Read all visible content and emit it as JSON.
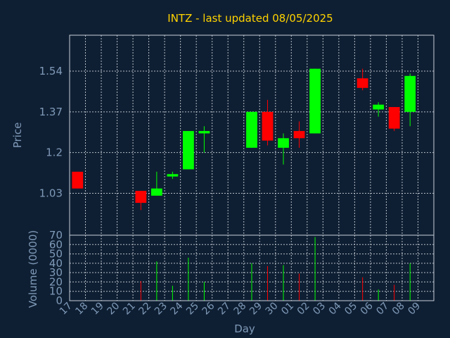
{
  "chart_data": [
    {
      "type": "candlestick",
      "title": "INTZ - last updated 08/05/2025",
      "ylabel": "Price",
      "xlabel": "Day",
      "ylim": [
        0.855,
        1.69
      ],
      "yticks": [
        1.03,
        1.2,
        1.37,
        1.54
      ],
      "ytick_labels": [
        "1.03",
        "1.2",
        "1.37",
        "1.54"
      ],
      "x": [
        "17",
        "18",
        "19",
        "20",
        "21",
        "22",
        "23",
        "24",
        "25",
        "26",
        "27",
        "28",
        "29",
        "30",
        "01",
        "02",
        "03",
        "04",
        "05",
        "06",
        "07",
        "08",
        "09"
      ],
      "colors": {
        "up": "#00ff00",
        "down": "#ff0000"
      },
      "candles": [
        {
          "x": "17",
          "open": 1.12,
          "high": 1.12,
          "low": 1.05,
          "close": 1.05
        },
        {
          "x": "21",
          "open": 1.04,
          "high": 1.04,
          "low": 0.96,
          "close": 0.99
        },
        {
          "x": "22",
          "open": 1.02,
          "high": 1.12,
          "low": 1.02,
          "close": 1.05
        },
        {
          "x": "23",
          "open": 1.1,
          "high": 1.12,
          "low": 1.09,
          "close": 1.11
        },
        {
          "x": "24",
          "open": 1.13,
          "high": 1.29,
          "low": 1.13,
          "close": 1.29
        },
        {
          "x": "25",
          "open": 1.28,
          "high": 1.31,
          "low": 1.2,
          "close": 1.29
        },
        {
          "x": "28",
          "open": 1.22,
          "high": 1.37,
          "low": 1.22,
          "close": 1.37
        },
        {
          "x": "29",
          "open": 1.37,
          "high": 1.42,
          "low": 1.23,
          "close": 1.25
        },
        {
          "x": "30",
          "open": 1.22,
          "high": 1.28,
          "low": 1.15,
          "close": 1.26
        },
        {
          "x": "01",
          "open": 1.29,
          "high": 1.33,
          "low": 1.22,
          "close": 1.26
        },
        {
          "x": "02",
          "open": 1.28,
          "high": 1.55,
          "low": 1.28,
          "close": 1.55
        },
        {
          "x": "05",
          "open": 1.51,
          "high": 1.55,
          "low": 1.46,
          "close": 1.47
        },
        {
          "x": "06",
          "open": 1.38,
          "high": 1.41,
          "low": 1.35,
          "close": 1.4
        },
        {
          "x": "07",
          "open": 1.39,
          "high": 1.39,
          "low": 1.29,
          "close": 1.3
        },
        {
          "x": "08",
          "open": 1.37,
          "high": 1.53,
          "low": 1.31,
          "close": 1.52
        }
      ]
    },
    {
      "type": "bar",
      "ylabel": "Volume (0000)",
      "ylim": [
        0,
        70
      ],
      "yticks": [
        0,
        10,
        20,
        30,
        40,
        50,
        60,
        70
      ],
      "ytick_labels": [
        "0",
        "10",
        "20",
        "30",
        "40",
        "50",
        "60",
        "70"
      ],
      "x": [
        "17",
        "18",
        "19",
        "20",
        "21",
        "22",
        "23",
        "24",
        "25",
        "26",
        "27",
        "28",
        "29",
        "30",
        "01",
        "02",
        "03",
        "04",
        "05",
        "06",
        "07",
        "08",
        "09"
      ],
      "bars": [
        {
          "x": "21",
          "value": 21,
          "color": "#ff0000"
        },
        {
          "x": "22",
          "value": 42,
          "color": "#00ff00"
        },
        {
          "x": "23",
          "value": 16,
          "color": "#00ff00"
        },
        {
          "x": "24",
          "value": 46,
          "color": "#00ff00"
        },
        {
          "x": "25",
          "value": 20,
          "color": "#00ff00"
        },
        {
          "x": "28",
          "value": 40,
          "color": "#00ff00"
        },
        {
          "x": "29",
          "value": 37,
          "color": "#ff0000"
        },
        {
          "x": "30",
          "value": 38,
          "color": "#00ff00"
        },
        {
          "x": "01",
          "value": 29,
          "color": "#ff0000"
        },
        {
          "x": "02",
          "value": 68,
          "color": "#00ff00"
        },
        {
          "x": "05",
          "value": 25,
          "color": "#ff0000"
        },
        {
          "x": "06",
          "value": 12,
          "color": "#00ff00"
        },
        {
          "x": "07",
          "value": 17,
          "color": "#ff0000"
        },
        {
          "x": "08",
          "value": 40,
          "color": "#00ff00"
        }
      ]
    }
  ]
}
